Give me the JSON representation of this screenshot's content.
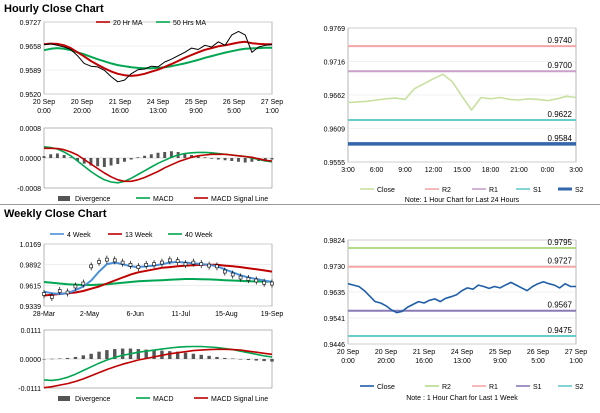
{
  "page": {
    "hourly_title": "Hourly Close Chart",
    "weekly_title": "Weekly Close Chart"
  },
  "chart_data": [
    {
      "id": "hourly_price",
      "type": "line",
      "legend": [
        "20 Hr MA",
        "50 Hrs MA"
      ],
      "colors": {
        "price": "#000000",
        "ma20": "#c00000",
        "ma50": "#00a651"
      },
      "ylim": [
        0.952,
        0.9727
      ],
      "yticks": [
        "0.9727",
        "0.9658",
        "0.9589",
        "0.9520"
      ],
      "xticks": [
        "20 Sep\n0:00",
        "20 Sep\n20:00",
        "21 Sep\n16:00",
        "24 Sep\n13:00",
        "25 Sep\n9:00",
        "26 Sep\n5:00",
        "27 Sep\n1:00"
      ],
      "series": [
        {
          "name": "Price",
          "values": [
            0.9662,
            0.9664,
            0.966,
            0.9655,
            0.9648,
            0.963,
            0.9608,
            0.96,
            0.9598,
            0.9588,
            0.957,
            0.9555,
            0.956,
            0.9578,
            0.959,
            0.9592,
            0.96,
            0.9598,
            0.9612,
            0.962,
            0.963,
            0.964,
            0.9652,
            0.9648,
            0.966,
            0.9655,
            0.967,
            0.966,
            0.969,
            0.97,
            0.969,
            0.964,
            0.9655,
            0.966,
            0.9662
          ]
        },
        {
          "name": "20 Hr MA",
          "values": [
            0.9663,
            0.9665,
            0.9664,
            0.966,
            0.9652,
            0.964,
            0.9628,
            0.9615,
            0.9604,
            0.9594,
            0.9585,
            0.9578,
            0.9574,
            0.9572,
            0.9574,
            0.9578,
            0.9584,
            0.959,
            0.9598,
            0.9606,
            0.9615,
            0.9624,
            0.9632,
            0.964,
            0.9647,
            0.9652,
            0.9657,
            0.966,
            0.9664,
            0.9668,
            0.967,
            0.9666,
            0.9664,
            0.9663,
            0.9663
          ]
        },
        {
          "name": "50 Hrs MA",
          "values": [
            0.9646,
            0.965,
            0.9652,
            0.965,
            0.9646,
            0.964,
            0.9634,
            0.9627,
            0.962,
            0.9614,
            0.9608,
            0.9603,
            0.96,
            0.9597,
            0.9595,
            0.9594,
            0.9594,
            0.9595,
            0.9597,
            0.96,
            0.9604,
            0.9608,
            0.9613,
            0.9618,
            0.9624,
            0.9629,
            0.9634,
            0.9639,
            0.9643,
            0.9647,
            0.965,
            0.9651,
            0.9652,
            0.9653,
            0.9653
          ]
        }
      ]
    },
    {
      "id": "hourly_macd",
      "type": "bar",
      "ylim": [
        -0.0008,
        0.0008
      ],
      "yticks": [
        "0.0008",
        "0.0000",
        "-0.0008"
      ],
      "legend": [
        "Divergence",
        "MACD",
        "MACD Signal Line"
      ],
      "colors": {
        "divergence": "#555555",
        "macd": "#00a651",
        "signal": "#c00000"
      },
      "series": [
        {
          "name": "Divergence",
          "values": [
            5e-05,
            0.0001,
            0.00012,
            8e-05,
            2e-05,
            -8e-05,
            -0.00015,
            -0.0002,
            -0.00022,
            -0.00024,
            -0.0002,
            -0.00016,
            -0.0001,
            -4e-05,
            2e-05,
            6e-05,
            0.0001,
            0.00014,
            0.00016,
            0.00018,
            0.00016,
            0.00012,
            8e-05,
            4e-05,
            2e-05,
            -2e-05,
            -4e-05,
            -6e-05,
            -8e-05,
            -0.0001,
            -0.00012,
            -0.0001,
            -8e-05,
            -6e-05,
            -4e-05
          ]
        },
        {
          "name": "MACD",
          "values": [
            0.0003,
            0.00028,
            0.00024,
            0.00016,
            6e-05,
            -8e-05,
            -0.00022,
            -0.00036,
            -0.00048,
            -0.00058,
            -0.00064,
            -0.00066,
            -0.00062,
            -0.00054,
            -0.00044,
            -0.00034,
            -0.00024,
            -0.00014,
            -6e-05,
            2e-05,
            8e-05,
            0.00012,
            0.00014,
            0.00015,
            0.00015,
            0.00014,
            0.00012,
            0.0001,
            8e-05,
            6e-05,
            4e-05,
            0.0,
            -4e-05,
            -8e-05,
            -0.0001
          ]
        },
        {
          "name": "MACD Signal Line",
          "values": [
            0.00026,
            0.00026,
            0.00025,
            0.00022,
            0.00016,
            8e-05,
            -4e-05,
            -0.00016,
            -0.00028,
            -0.0004,
            -0.0005,
            -0.00058,
            -0.00062,
            -0.00062,
            -0.00058,
            -0.00052,
            -0.00044,
            -0.00036,
            -0.00026,
            -0.00018,
            -0.0001,
            -4e-05,
            2e-05,
            6e-05,
            8e-05,
            0.0001,
            0.0001,
            0.0001,
            8e-05,
            6e-05,
            4e-05,
            2e-05,
            -2e-05,
            -6e-05,
            -8e-05
          ]
        }
      ]
    },
    {
      "id": "hourly_24h",
      "type": "line",
      "ylim": [
        0.9555,
        0.9769
      ],
      "yticks": [
        "0.9769",
        "0.9716",
        "0.9662",
        "0.9609",
        "0.9555"
      ],
      "xticks": [
        "3:00",
        "6:00",
        "9:00",
        "12:00",
        "15:00",
        "18:00",
        "21:00",
        "0:00",
        "3:00"
      ],
      "levels": [
        {
          "name": "R2",
          "value": 0.974,
          "color": "#f4a6a6",
          "label": "0.9740"
        },
        {
          "name": "R1",
          "value": 0.97,
          "color": "#c8a0c8",
          "label": "0.9700"
        },
        {
          "name": "S1",
          "value": 0.9622,
          "color": "#66cccc",
          "label": "0.9622"
        },
        {
          "name": "S2",
          "value": 0.9584,
          "color": "#3366aa",
          "label": "0.9584"
        }
      ],
      "legend": [
        "Close",
        "R2",
        "R1",
        "S1",
        "S2"
      ],
      "note": "Note: 1 Hour Chart for Last 24 Hours",
      "series": [
        {
          "name": "Close",
          "color": "#c8e0a0",
          "values": [
            0.965,
            0.9651,
            0.9652,
            0.9654,
            0.9656,
            0.9657,
            0.9655,
            0.9672,
            0.968,
            0.9688,
            0.9695,
            0.9683,
            0.966,
            0.9638,
            0.9658,
            0.9656,
            0.9658,
            0.9655,
            0.9654,
            0.9656,
            0.9655,
            0.9653,
            0.9656,
            0.966,
            0.9658
          ]
        }
      ]
    },
    {
      "id": "weekly_price",
      "type": "line",
      "legend": [
        "4 Week",
        "13 Week",
        "40 Week"
      ],
      "colors": {
        "price": "#000000",
        "wk4": "#4a90d9",
        "wk13": "#c00000",
        "wk40": "#00a651"
      },
      "ylim": [
        0.9339,
        1.0169
      ],
      "yticks": [
        "1.0169",
        "0.9892",
        "0.9615",
        "0.9339"
      ],
      "xticks": [
        "28-Mar",
        "2-May",
        "6-Jun",
        "11-Jul",
        "15-Aug",
        "19-Sep"
      ],
      "series": [
        {
          "name": "Price",
          "values": [
            0.95,
            0.946,
            0.954,
            0.952,
            0.96,
            0.964,
            0.987,
            0.993,
            0.996,
            0.995,
            0.992,
            0.989,
            0.986,
            0.989,
            0.99,
            0.992,
            0.995,
            0.994,
            0.99,
            0.992,
            0.99,
            0.988,
            0.987,
            0.98,
            0.976,
            0.972,
            0.97,
            0.968,
            0.965,
            0.964
          ]
        },
        {
          "name": "4 Week",
          "values": [
            0.953,
            0.951,
            0.95,
            0.951,
            0.955,
            0.96,
            0.968,
            0.98,
            0.99,
            0.992,
            0.99,
            0.987,
            0.986,
            0.987,
            0.988,
            0.99,
            0.992,
            0.993,
            0.992,
            0.991,
            0.99,
            0.989,
            0.987,
            0.983,
            0.979,
            0.975,
            0.972,
            0.97,
            0.968,
            0.966
          ]
        },
        {
          "name": "13 Week",
          "values": [
            0.948,
            0.949,
            0.95,
            0.951,
            0.952,
            0.954,
            0.957,
            0.96,
            0.964,
            0.968,
            0.972,
            0.976,
            0.979,
            0.981,
            0.983,
            0.985,
            0.986,
            0.987,
            0.988,
            0.9885,
            0.989,
            0.9892,
            0.989,
            0.988,
            0.987,
            0.986,
            0.9845,
            0.983,
            0.9815,
            0.98
          ]
        },
        {
          "name": "40 Week",
          "values": [
            0.966,
            0.965,
            0.964,
            0.963,
            0.9625,
            0.962,
            0.962,
            0.9625,
            0.963,
            0.964,
            0.965,
            0.966,
            0.967,
            0.9675,
            0.968,
            0.9685,
            0.969,
            0.9695,
            0.97,
            0.97,
            0.9698,
            0.9695,
            0.969,
            0.9685,
            0.968,
            0.9675,
            0.967,
            0.9668,
            0.9666,
            0.9665
          ]
        }
      ]
    },
    {
      "id": "weekly_macd",
      "type": "bar",
      "ylim": [
        -0.0111,
        0.0111
      ],
      "yticks": [
        "0.0111",
        "0.0000",
        "-0.0111"
      ],
      "legend": [
        "Divergence",
        "MACD",
        "MACD Signal Line"
      ],
      "colors": {
        "divergence": "#555555",
        "macd": "#00a651",
        "signal": "#c00000"
      },
      "series": [
        {
          "name": "Divergence",
          "values": [
            0.0,
            0.0001,
            0.0002,
            0.0004,
            0.0008,
            0.0014,
            0.002,
            0.0028,
            0.0034,
            0.0038,
            0.004,
            0.004,
            0.0038,
            0.0036,
            0.0034,
            0.0032,
            0.003,
            0.0028,
            0.0024,
            0.002,
            0.0016,
            0.0012,
            0.0008,
            0.0004,
            0.0002,
            -0.0002,
            -0.0004,
            -0.0006,
            -0.0008,
            -0.001
          ]
        },
        {
          "name": "MACD",
          "values": [
            -0.008,
            -0.0082,
            -0.0078,
            -0.007,
            -0.0058,
            -0.0044,
            -0.003,
            -0.0016,
            -0.0004,
            0.0006,
            0.0014,
            0.002,
            0.0026,
            0.003,
            0.0034,
            0.0038,
            0.0042,
            0.0045,
            0.0047,
            0.0048,
            0.0048,
            0.0046,
            0.0044,
            0.004,
            0.0036,
            0.003,
            0.0024,
            0.0018,
            0.0012,
            0.0008
          ]
        },
        {
          "name": "MACD Signal Line",
          "values": [
            -0.011,
            -0.0106,
            -0.01,
            -0.0094,
            -0.0086,
            -0.0076,
            -0.0064,
            -0.0052,
            -0.004,
            -0.003,
            -0.002,
            -0.0012,
            -0.0004,
            0.0002,
            0.0008,
            0.0014,
            0.002,
            0.0024,
            0.0028,
            0.0032,
            0.0034,
            0.0036,
            0.0037,
            0.0037,
            0.0036,
            0.0034,
            0.003,
            0.0026,
            0.0022,
            0.0018
          ]
        }
      ]
    },
    {
      "id": "weekly_1w",
      "type": "line",
      "ylim": [
        0.9446,
        0.9824
      ],
      "yticks": [
        "0.9824",
        "0.9730",
        "0.9635",
        "0.9541",
        "0.9446"
      ],
      "xticks": [
        "20 Sep\n0:00",
        "20 Sep\n20:00",
        "21 Sep\n16:00",
        "24 Sep\n13:00",
        "25 Sep\n9:00",
        "26 Sep\n5:00",
        "27 Sep\n1:00"
      ],
      "levels": [
        {
          "name": "R2",
          "value": 0.9795,
          "color": "#b5d98a",
          "label": "0.9795"
        },
        {
          "name": "R1",
          "value": 0.9727,
          "color": "#f4a6a6",
          "label": "0.9727"
        },
        {
          "name": "S1",
          "value": 0.9567,
          "color": "#8a7ab5",
          "label": "0.9567"
        },
        {
          "name": "S2",
          "value": 0.9475,
          "color": "#66cccc",
          "label": "0.9475"
        }
      ],
      "legend": [
        "Close",
        "R2",
        "R1",
        "S1",
        "S2"
      ],
      "note": "Note : 1 Hour Chart for Last 1 Week",
      "series": [
        {
          "name": "Close",
          "color": "#1f5fa8",
          "values": [
            0.9665,
            0.966,
            0.9655,
            0.964,
            0.962,
            0.96,
            0.9595,
            0.9585,
            0.957,
            0.956,
            0.9565,
            0.958,
            0.959,
            0.96,
            0.9595,
            0.9605,
            0.961,
            0.96,
            0.9612,
            0.9618,
            0.9625,
            0.964,
            0.965,
            0.9645,
            0.966,
            0.9655,
            0.9648,
            0.9655,
            0.965,
            0.966,
            0.967,
            0.966,
            0.965,
            0.964,
            0.9655,
            0.9665,
            0.9672,
            0.9665,
            0.966,
            0.965,
            0.9665,
            0.9655,
            0.9655
          ]
        }
      ]
    }
  ]
}
